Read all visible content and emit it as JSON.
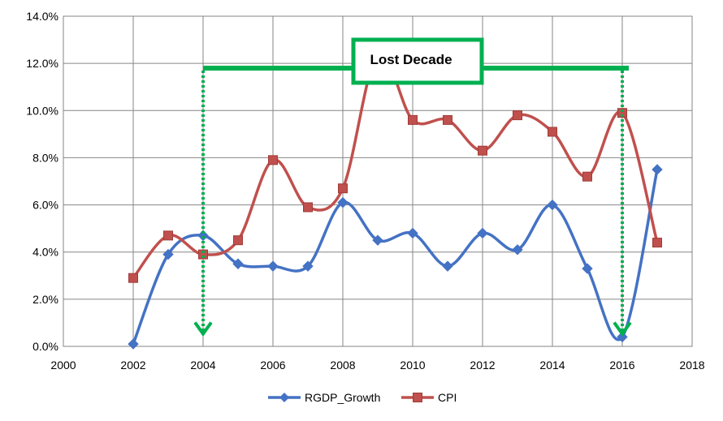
{
  "chart_data": {
    "type": "line",
    "title": "",
    "xlabel": "",
    "ylabel": "",
    "xlim": [
      2000,
      2018
    ],
    "ylim": [
      0,
      14
    ],
    "x_ticks": [
      "2000",
      "2002",
      "2004",
      "2006",
      "2008",
      "2010",
      "2012",
      "2014",
      "2016",
      "2018"
    ],
    "y_ticks": [
      "0.0%",
      "2.0%",
      "4.0%",
      "6.0%",
      "8.0%",
      "10.0%",
      "12.0%",
      "14.0%"
    ],
    "grid": true,
    "smooth": true,
    "legend_position": "bottom",
    "series": [
      {
        "name": "RGDP_Growth",
        "color": "#4472C4",
        "marker": "diamond",
        "x": [
          2002,
          2003,
          2004,
          2005,
          2006,
          2007,
          2008,
          2009,
          2010,
          2011,
          2012,
          2013,
          2014,
          2015,
          2016,
          2017
        ],
        "values": [
          0.1,
          3.9,
          4.7,
          3.5,
          3.4,
          3.4,
          6.1,
          4.5,
          4.8,
          3.4,
          4.8,
          4.1,
          6.0,
          3.3,
          0.4,
          7.5
        ]
      },
      {
        "name": "CPI",
        "color": "#C0504D",
        "marker": "square",
        "x": [
          2002,
          2003,
          2004,
          2005,
          2006,
          2007,
          2008,
          2009,
          2010,
          2011,
          2012,
          2013,
          2014,
          2015,
          2016,
          2017
        ],
        "values": [
          2.9,
          4.7,
          3.9,
          4.5,
          7.9,
          5.9,
          6.7,
          12.4,
          9.6,
          9.6,
          8.3,
          9.8,
          9.1,
          7.2,
          9.9,
          4.4
        ]
      }
    ],
    "annotation": {
      "label": "Lost Decade",
      "color": "#00B050",
      "start_year": 2004,
      "end_year": 2016,
      "bar_level": 11.8
    }
  }
}
